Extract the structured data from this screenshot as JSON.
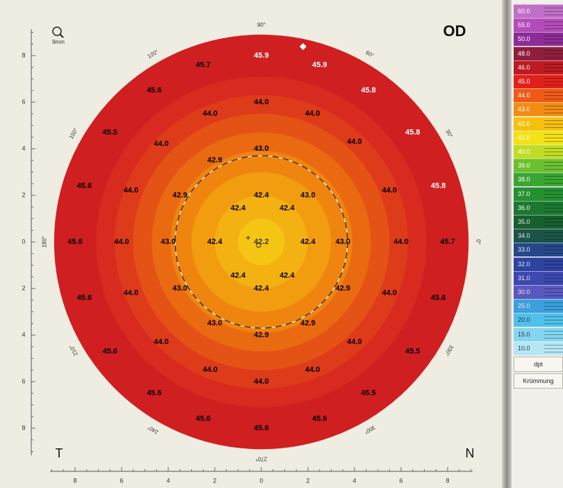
{
  "map": {
    "eye_label": "OD",
    "left_side_label": "T",
    "right_side_label": "N",
    "zoom_label": "9mm",
    "degree_labels": [
      {
        "text": "90°",
        "angle": 90
      },
      {
        "text": "60°",
        "angle": 60
      },
      {
        "text": "30°",
        "angle": 30
      },
      {
        "text": "0°",
        "angle": 0
      },
      {
        "text": "330°",
        "angle": 330
      },
      {
        "text": "300°",
        "angle": 300
      },
      {
        "text": "270°",
        "angle": 270
      },
      {
        "text": "240°",
        "angle": 240
      },
      {
        "text": "210°",
        "angle": 210
      },
      {
        "text": "180°",
        "angle": 180
      },
      {
        "text": "150°",
        "angle": 150
      },
      {
        "text": "120°",
        "angle": 120
      }
    ],
    "x_ticks": [
      "8",
      "6",
      "4",
      "2",
      "0",
      "2",
      "4",
      "6",
      "8"
    ],
    "y_ticks": [
      "8",
      "6",
      "4",
      "2",
      "0",
      "2",
      "4",
      "6",
      "8"
    ],
    "rings": [
      {
        "max_r_mm": 1.0,
        "color": "#f5c514"
      },
      {
        "max_r_mm": 2.0,
        "color": "#f4b112"
      },
      {
        "max_r_mm": 3.0,
        "color": "#f29c10"
      },
      {
        "max_r_mm": 3.9,
        "color": "#ef840f"
      },
      {
        "max_r_mm": 4.7,
        "color": "#ea6a11"
      },
      {
        "max_r_mm": 5.5,
        "color": "#e45315"
      },
      {
        "max_r_mm": 6.3,
        "color": "#de3b1b"
      },
      {
        "max_r_mm": 7.1,
        "color": "#d82a1f"
      },
      {
        "max_r_mm": 8.9,
        "color": "#d01f21"
      }
    ],
    "pupil_radius_mm": 3.7,
    "values": [
      {
        "t": "42.2",
        "x": 0.0,
        "y": 0.0,
        "c": "#333333"
      },
      {
        "t": "42.4",
        "x": 2.0,
        "y": 0.0,
        "c": "#000000"
      },
      {
        "t": "42.4",
        "x": 1.1,
        "y": 1.45,
        "c": "#000000"
      },
      {
        "t": "42.4",
        "x": 0.0,
        "y": 2.0,
        "c": "#000000"
      },
      {
        "t": "42.4",
        "x": -1.0,
        "y": 1.45,
        "c": "#000000"
      },
      {
        "t": "42.4",
        "x": -2.0,
        "y": 0.0,
        "c": "#000000"
      },
      {
        "t": "42.4",
        "x": -1.0,
        "y": -1.45,
        "c": "#000000"
      },
      {
        "t": "42.4",
        "x": 0.0,
        "y": -2.0,
        "c": "#000000"
      },
      {
        "t": "42.4",
        "x": 1.1,
        "y": -1.45,
        "c": "#000000"
      },
      {
        "t": "43.0",
        "x": 3.5,
        "y": 0.0,
        "c": "#000000"
      },
      {
        "t": "43.0",
        "x": 2.0,
        "y": 2.0,
        "c": "#000000"
      },
      {
        "t": "43.0",
        "x": 0.0,
        "y": 4.0,
        "c": "#000000"
      },
      {
        "t": "42.9",
        "x": -2.0,
        "y": 3.5,
        "c": "#000000"
      },
      {
        "t": "42.9",
        "x": -3.5,
        "y": 2.0,
        "c": "#000000"
      },
      {
        "t": "43.0",
        "x": -4.0,
        "y": 0.0,
        "c": "#000000"
      },
      {
        "t": "43.0",
        "x": -3.5,
        "y": -2.0,
        "c": "#000000"
      },
      {
        "t": "43.0",
        "x": -2.0,
        "y": -3.5,
        "c": "#000000"
      },
      {
        "t": "42.9",
        "x": 0.0,
        "y": -4.0,
        "c": "#000000"
      },
      {
        "t": "42.9",
        "x": 2.0,
        "y": -3.5,
        "c": "#000000"
      },
      {
        "t": "42.9",
        "x": 3.5,
        "y": -2.0,
        "c": "#000000"
      },
      {
        "t": "44.0",
        "x": 6.0,
        "y": 0.0,
        "c": "#000000"
      },
      {
        "t": "44.0",
        "x": 5.5,
        "y": 2.2,
        "c": "#000000"
      },
      {
        "t": "44.0",
        "x": 4.0,
        "y": 4.3,
        "c": "#000000"
      },
      {
        "t": "44.0",
        "x": 2.2,
        "y": 5.5,
        "c": "#000000"
      },
      {
        "t": "44.0",
        "x": 0.0,
        "y": 6.0,
        "c": "#000000"
      },
      {
        "t": "44.0",
        "x": -2.2,
        "y": 5.5,
        "c": "#000000"
      },
      {
        "t": "44.0",
        "x": -4.3,
        "y": 4.2,
        "c": "#000000"
      },
      {
        "t": "44.0",
        "x": -5.6,
        "y": 2.2,
        "c": "#000000"
      },
      {
        "t": "44.0",
        "x": -6.0,
        "y": 0.0,
        "c": "#000000"
      },
      {
        "t": "44.0",
        "x": -5.6,
        "y": -2.2,
        "c": "#000000"
      },
      {
        "t": "44.0",
        "x": -4.3,
        "y": -4.3,
        "c": "#000000"
      },
      {
        "t": "44.0",
        "x": -2.2,
        "y": -5.5,
        "c": "#000000"
      },
      {
        "t": "44.0",
        "x": 0.0,
        "y": -6.0,
        "c": "#000000"
      },
      {
        "t": "44.0",
        "x": 2.2,
        "y": -5.5,
        "c": "#000000"
      },
      {
        "t": "44.0",
        "x": 4.0,
        "y": -4.3,
        "c": "#000000"
      },
      {
        "t": "44.0",
        "x": 5.5,
        "y": -2.2,
        "c": "#000000"
      },
      {
        "t": "45.7",
        "x": 8.0,
        "y": 0.0,
        "c": "#000000"
      },
      {
        "t": "45.8",
        "x": 7.6,
        "y": 2.4,
        "c": "#ffffff"
      },
      {
        "t": "45.8",
        "x": 6.5,
        "y": 4.7,
        "c": "#ffffff"
      },
      {
        "t": "45.8",
        "x": 4.6,
        "y": 6.5,
        "c": "#ffffff"
      },
      {
        "t": "45.9",
        "x": 2.5,
        "y": 7.6,
        "c": "#ffffff"
      },
      {
        "t": "45.9",
        "x": 0.0,
        "y": 8.0,
        "c": "#ffffff"
      },
      {
        "t": "45.7",
        "x": -2.5,
        "y": 7.6,
        "c": "#000000"
      },
      {
        "t": "45.6",
        "x": -4.6,
        "y": 6.5,
        "c": "#000000"
      },
      {
        "t": "45.5",
        "x": -6.5,
        "y": 4.7,
        "c": "#000000"
      },
      {
        "t": "45.6",
        "x": -7.6,
        "y": 2.4,
        "c": "#000000"
      },
      {
        "t": "45.6",
        "x": -8.0,
        "y": 0.0,
        "c": "#000000"
      },
      {
        "t": "45.6",
        "x": -7.6,
        "y": -2.4,
        "c": "#000000"
      },
      {
        "t": "45.6",
        "x": -6.5,
        "y": -4.7,
        "c": "#000000"
      },
      {
        "t": "45.6",
        "x": -4.6,
        "y": -6.5,
        "c": "#000000"
      },
      {
        "t": "45.6",
        "x": -2.5,
        "y": -7.6,
        "c": "#000000"
      },
      {
        "t": "45.6",
        "x": 0.0,
        "y": -8.0,
        "c": "#000000"
      },
      {
        "t": "45.6",
        "x": 2.5,
        "y": -7.6,
        "c": "#000000"
      },
      {
        "t": "45.5",
        "x": 4.6,
        "y": -6.5,
        "c": "#000000"
      },
      {
        "t": "45.5",
        "x": 6.5,
        "y": -4.7,
        "c": "#000000"
      },
      {
        "t": "45.6",
        "x": 7.6,
        "y": -2.4,
        "c": "#000000"
      }
    ]
  },
  "scale": {
    "items": [
      {
        "label": "60.0",
        "color": "#c070c8"
      },
      {
        "label": "55.0",
        "color": "#b24cb8"
      },
      {
        "label": "50.0",
        "color": "#8c2c96"
      },
      {
        "label": "48.0",
        "color": "#8e1f3c"
      },
      {
        "label": "46.0",
        "color": "#bd1a22"
      },
      {
        "label": "45.0",
        "color": "#e2201a"
      },
      {
        "label": "44.0",
        "color": "#ef5a16"
      },
      {
        "label": "43.0",
        "color": "#f28c12"
      },
      {
        "label": "42.0",
        "color": "#f6c10e"
      },
      {
        "label": "41.0",
        "color": "#f2e217"
      },
      {
        "label": "40.0",
        "color": "#c2dc25"
      },
      {
        "label": "39.0",
        "color": "#6cc030"
      },
      {
        "label": "38.0",
        "color": "#3aa632"
      },
      {
        "label": "37.0",
        "color": "#259032"
      },
      {
        "label": "36.0",
        "color": "#1c7830"
      },
      {
        "label": "35.0",
        "color": "#17602e"
      },
      {
        "label": "34.0",
        "color": "#1a5446"
      },
      {
        "label": "33.0",
        "color": "#25488a"
      },
      {
        "label": "32.0",
        "color": "#2d43a0"
      },
      {
        "label": "31.0",
        "color": "#3d48b0"
      },
      {
        "label": "30.0",
        "color": "#5a58c0"
      },
      {
        "label": "25.0",
        "color": "#3d9fdc"
      },
      {
        "label": "20.0",
        "color": "#4fc0ea"
      },
      {
        "label": "15.0",
        "color": "#84d6f0"
      },
      {
        "label": "10.0",
        "color": "#b6e7f5"
      }
    ],
    "unit_label": "dpt",
    "mode_label": "Krümmung"
  }
}
